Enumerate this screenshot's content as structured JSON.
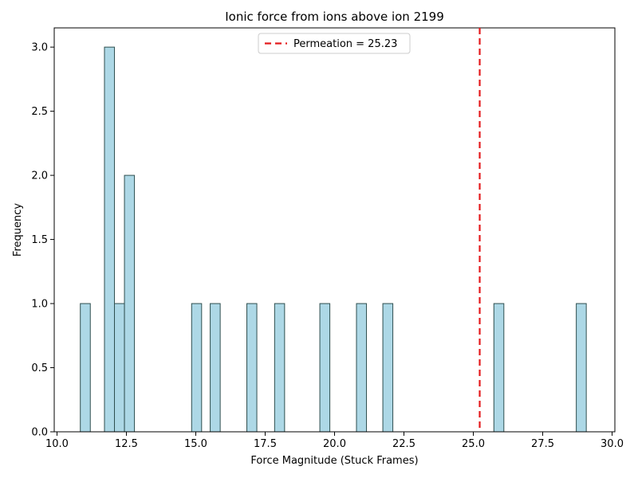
{
  "chart_data": {
    "type": "bar",
    "title": "Ionic force from ions above ion 2199",
    "xlabel": "Force Magnitude (Stuck Frames)",
    "ylabel": "Frequency",
    "xlim": [
      9.9,
      30.1
    ],
    "ylim": [
      0,
      3.15
    ],
    "xticks": [
      10.0,
      12.5,
      15.0,
      17.5,
      20.0,
      22.5,
      25.0,
      27.5,
      30.0
    ],
    "xtick_labels": [
      "10.0",
      "12.5",
      "15.0",
      "17.5",
      "20.0",
      "22.5",
      "25.0",
      "27.5",
      "30.0"
    ],
    "yticks": [
      0.0,
      0.5,
      1.0,
      1.5,
      2.0,
      2.5,
      3.0
    ],
    "ytick_labels": [
      "0.0",
      "0.5",
      "1.0",
      "1.5",
      "2.0",
      "2.5",
      "3.0"
    ],
    "bin_width": 0.36,
    "bars": [
      {
        "x0": 10.84,
        "value": 1
      },
      {
        "x0": 11.71,
        "value": 3
      },
      {
        "x0": 12.07,
        "value": 1
      },
      {
        "x0": 12.43,
        "value": 2
      },
      {
        "x0": 14.85,
        "value": 1
      },
      {
        "x0": 15.52,
        "value": 1
      },
      {
        "x0": 16.84,
        "value": 1
      },
      {
        "x0": 17.84,
        "value": 1
      },
      {
        "x0": 19.47,
        "value": 1
      },
      {
        "x0": 20.79,
        "value": 1
      },
      {
        "x0": 21.74,
        "value": 1
      },
      {
        "x0": 25.74,
        "value": 1
      },
      {
        "x0": 28.71,
        "value": 1
      }
    ],
    "bar_color": "#add8e6",
    "bar_edge_color": "#2f4f4f",
    "grid": false,
    "threshold": {
      "x": 25.23,
      "label": "Permeation = 25.23",
      "color": "#e41a1c",
      "style": "dashed"
    },
    "legend_position": "upper-center"
  }
}
